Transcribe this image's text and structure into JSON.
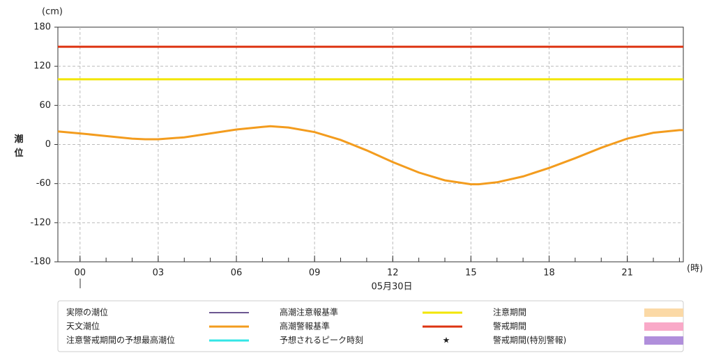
{
  "chart_data": {
    "type": "line",
    "y_label": "潮位",
    "y_unit": "(cm)",
    "x_unit": "(時)",
    "date_label": "05月30日",
    "xlim": [
      -0.85,
      23.15
    ],
    "xticks": [
      {
        "value": 0,
        "label": "00"
      },
      {
        "value": 3,
        "label": "03"
      },
      {
        "value": 6,
        "label": "06"
      },
      {
        "value": 9,
        "label": "09"
      },
      12,
      15,
      18,
      21
    ],
    "ylim": [
      -180,
      180
    ],
    "yticks": [
      -180,
      -120,
      -60,
      0,
      60,
      120,
      180
    ],
    "grid": true,
    "series": [
      {
        "name": "実際の潮位",
        "color": "#3b1f6b",
        "swatch": "line"
      },
      {
        "name": "天文潮位",
        "color": "#f39c1e",
        "swatch": "line",
        "x": [
          -0.85,
          0,
          1,
          2,
          2.5,
          3,
          4,
          5,
          6,
          7,
          7.3,
          8,
          9,
          10,
          11,
          12,
          13,
          14,
          15,
          15.3,
          16,
          17,
          18,
          19,
          20,
          21,
          22,
          23,
          23.15
        ],
        "values": [
          20,
          17,
          13,
          9,
          8,
          8,
          11,
          17,
          23,
          27,
          28,
          26,
          19,
          7,
          -9,
          -27,
          -43,
          -55,
          -61,
          -61,
          -58,
          -49,
          -36,
          -21,
          -5,
          9,
          18,
          22,
          22
        ]
      },
      {
        "name": "注意警戒期間の予想最高潮位",
        "color": "#33e6e6",
        "swatch": "line"
      },
      {
        "name": "高潮注意報基準",
        "color": "#f2e600",
        "swatch": "line",
        "x": [
          -0.85,
          23.15
        ],
        "values": [
          100,
          100
        ]
      },
      {
        "name": "高潮警報基準",
        "color": "#dd3311",
        "swatch": "line",
        "x": [
          -0.85,
          23.15
        ],
        "values": [
          150,
          150
        ]
      },
      {
        "name": "予想されるピーク時刻",
        "color": "#1a1acc",
        "swatch": "star"
      },
      {
        "name": "注意期間",
        "color": "#fbd9a6",
        "swatch": "rect"
      },
      {
        "name": "警戒期間",
        "color": "#f9a9c8",
        "swatch": "rect"
      },
      {
        "name": "警戒期間(特別警報)",
        "color": "#b08fdb",
        "swatch": "rect"
      }
    ]
  }
}
